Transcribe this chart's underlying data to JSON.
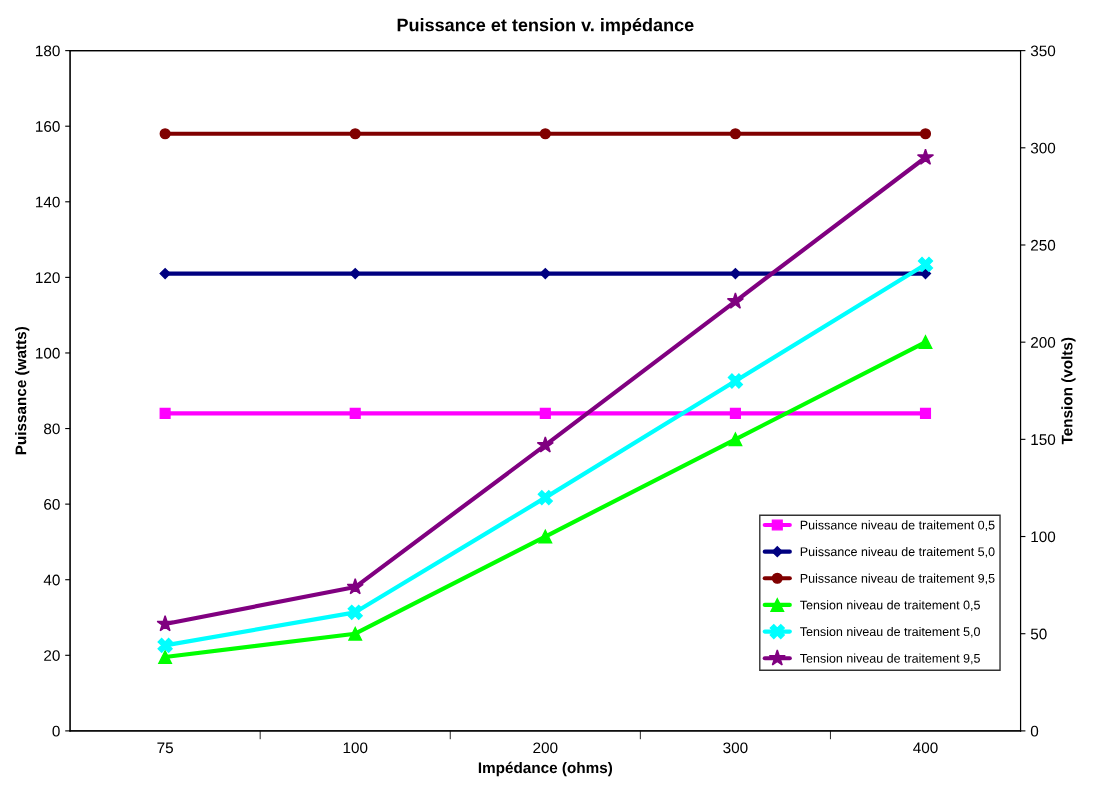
{
  "chart_data": {
    "type": "line",
    "title": "Puissance et tension v. impédance",
    "xlabel": "Impédance (ohms)",
    "ylabel": "Puissance (watts)",
    "y2label": "Tension (volts)",
    "categories": [
      "75",
      "100",
      "200",
      "300",
      "400"
    ],
    "ylim": [
      0,
      180
    ],
    "yticks": [
      0,
      20,
      40,
      60,
      80,
      100,
      120,
      140,
      160,
      180
    ],
    "y2lim": [
      0,
      350
    ],
    "y2ticks": [
      0,
      50,
      100,
      150,
      200,
      250,
      300,
      350
    ],
    "grid": false,
    "legend": "bottom right",
    "series": [
      {
        "name": "Puissance niveau de traitement 0,5",
        "color": "#ff00ff",
        "marker": "square",
        "values": [
          84,
          84,
          84,
          84,
          84
        ]
      },
      {
        "name": "Puissance niveau de traitement 5,0",
        "color": "#000080",
        "marker": "diamond",
        "values": [
          121,
          121,
          121,
          121,
          121
        ]
      },
      {
        "name": "Puissance niveau de traitement 9,5",
        "color": "#800000",
        "marker": "circle",
        "values": [
          158,
          158,
          158,
          158,
          158
        ]
      },
      {
        "name": "Tension niveau de traitement 0,5",
        "color": "#00ff00",
        "marker": "triangle",
        "axis": "y2",
        "values": [
          38,
          50,
          100,
          150,
          200
        ]
      },
      {
        "name": "Tension niveau de traitement 5,0",
        "color": "#00ffff",
        "marker": "cross",
        "axis": "y2",
        "values": [
          44,
          61,
          120,
          180,
          240
        ]
      },
      {
        "name": "Tension niveau de traitement 9,5",
        "color": "#800080",
        "marker": "star",
        "axis": "y2",
        "values": [
          55,
          74,
          147,
          221,
          295
        ]
      }
    ]
  }
}
